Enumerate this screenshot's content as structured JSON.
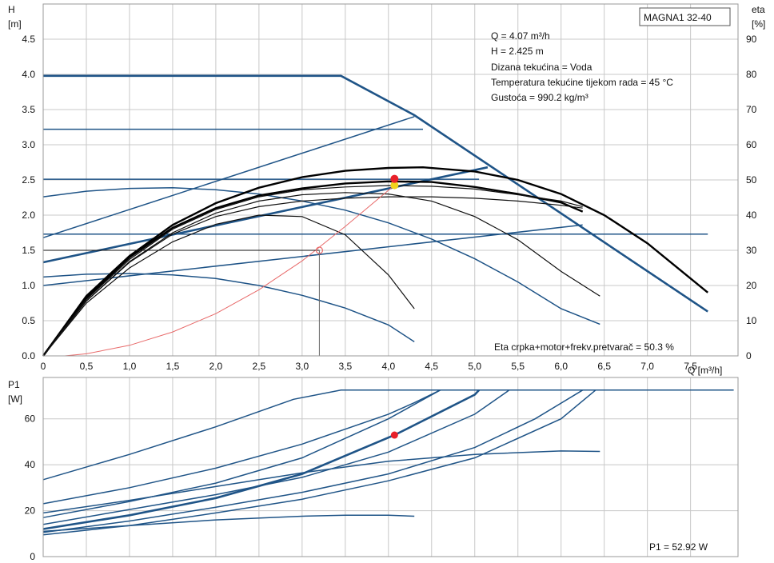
{
  "pump_label": "MAGNA1 32-40",
  "operating_point": {
    "lines": [
      "Q = 4.07 m³/h",
      "H = 2.425 m",
      "Dizana tekućina = Voda",
      "Temperatura tekućine tijekom rada = 45 °C",
      "Gustoća = 990.2 kg/m³"
    ],
    "efficiency_text": "Eta crpka+motor+frekv.pretvarač = 50.3 %",
    "power_text": "P1 = 52.92 W"
  },
  "chart_data": [
    {
      "type": "line",
      "title": "",
      "y_label_lines": [
        "H",
        "[m]"
      ],
      "y2_label_lines": [
        "eta",
        "[%]"
      ],
      "x_label": "Q [m³/h]",
      "xlim": [
        0,
        8.05
      ],
      "ylim": [
        0,
        5.0
      ],
      "y2lim": [
        0,
        100
      ],
      "x_ticks": [
        0,
        0.5,
        1.0,
        1.5,
        2.0,
        2.5,
        3.0,
        3.5,
        4.0,
        4.5,
        5.0,
        5.5,
        6.0,
        6.5,
        7.0,
        7.5
      ],
      "x_tick_labels": [
        "0",
        "0,5",
        "1,0",
        "1,5",
        "2,0",
        "2,5",
        "3,0",
        "3,5",
        "4,0",
        "4,5",
        "5,0",
        "5,5",
        "6,0",
        "6,5",
        "7,0",
        "7,5"
      ],
      "y_ticks": [
        0,
        0.5,
        1.0,
        1.5,
        2.0,
        2.5,
        3.0,
        3.5,
        4.0,
        4.5
      ],
      "y_tick_labels": [
        "0.0",
        "0.5",
        "1.0",
        "1.5",
        "2.0",
        "2.5",
        "3.0",
        "3.5",
        "4.0",
        "4.5"
      ],
      "y2_ticks": [
        0,
        10,
        20,
        30,
        40,
        50,
        60,
        70,
        80,
        90
      ],
      "y2_tick_labels": [
        "0",
        "10",
        "20",
        "30",
        "40",
        "50",
        "60",
        "70",
        "80",
        "90"
      ],
      "grid": true,
      "series": [
        {
          "role": "head-max",
          "style": "blueb",
          "x": [
            0,
            3.45,
            4.3,
            7.7
          ],
          "y": [
            3.98,
            3.98,
            3.42,
            0.63
          ]
        },
        {
          "role": "head-cp",
          "style": "blue",
          "x": [
            0,
            4.4
          ],
          "y": [
            3.22,
            3.22
          ]
        },
        {
          "role": "head-cp",
          "style": "blue",
          "x": [
            0,
            5.05
          ],
          "y": [
            2.51,
            2.51
          ]
        },
        {
          "role": "head-cp",
          "style": "blue",
          "x": [
            0,
            7.7
          ],
          "y": [
            1.73,
            1.73
          ]
        },
        {
          "role": "head-pp",
          "style": "blue",
          "x": [
            0,
            4.3
          ],
          "y": [
            1.68,
            3.4
          ]
        },
        {
          "role": "head-pp",
          "style": "blueb",
          "x": [
            0,
            5.15
          ],
          "y": [
            1.33,
            2.68
          ]
        },
        {
          "role": "head-pp",
          "style": "blue",
          "x": [
            0,
            6.25
          ],
          "y": [
            1.0,
            1.86
          ]
        },
        {
          "role": "head-speed",
          "style": "blue",
          "x": [
            0,
            0.5,
            1.0,
            1.5,
            2.0,
            2.5,
            3.0,
            3.5,
            4.0,
            4.5,
            5.0,
            5.5,
            6.0,
            6.45
          ],
          "y": [
            2.26,
            2.34,
            2.38,
            2.39,
            2.36,
            2.3,
            2.2,
            2.07,
            1.89,
            1.66,
            1.38,
            1.05,
            0.67,
            0.45
          ]
        },
        {
          "role": "head-speed",
          "style": "blue",
          "x": [
            0,
            0.5,
            1.0,
            1.5,
            2.0,
            2.5,
            3.0,
            3.5,
            4.0,
            4.3
          ],
          "y": [
            1.12,
            1.16,
            1.17,
            1.15,
            1.1,
            1.0,
            0.86,
            0.68,
            0.44,
            0.2
          ]
        },
        {
          "role": "eta",
          "style": "blkb",
          "x": [
            0,
            0.5,
            1.0,
            1.5,
            2.0,
            2.5,
            3.0,
            3.5,
            4.0,
            4.4,
            5.0,
            5.5,
            6.0,
            6.5,
            7.0,
            7.5,
            7.7
          ],
          "y": [
            0,
            0.85,
            1.42,
            1.86,
            2.17,
            2.39,
            2.54,
            2.63,
            2.67,
            2.68,
            2.62,
            2.5,
            2.3,
            2.0,
            1.6,
            1.1,
            0.9
          ]
        },
        {
          "role": "eta",
          "style": "blkb",
          "x": [
            0,
            0.5,
            1.0,
            1.5,
            2.0,
            2.5,
            3.0,
            3.5,
            4.0,
            4.5,
            5.0,
            5.5,
            6.0,
            6.25
          ],
          "y": [
            0,
            0.82,
            1.4,
            1.82,
            2.1,
            2.28,
            2.38,
            2.45,
            2.48,
            2.47,
            2.4,
            2.3,
            2.18,
            2.05
          ]
        },
        {
          "role": "eta",
          "style": "blk",
          "x": [
            0,
            0.5,
            1.0,
            1.5,
            2.0,
            2.5,
            3.0,
            3.5,
            4.0,
            4.5,
            5.0,
            5.5,
            6.0,
            6.45
          ],
          "y": [
            0,
            0.78,
            1.34,
            1.75,
            2.03,
            2.2,
            2.29,
            2.32,
            2.3,
            2.2,
            1.98,
            1.65,
            1.2,
            0.85
          ]
        },
        {
          "role": "eta",
          "style": "blk",
          "x": [
            0,
            0.5,
            1.0,
            1.5,
            2.0,
            2.5,
            3.0,
            3.5,
            4.0,
            4.5,
            5.0,
            5.5,
            6.0,
            6.25
          ],
          "y": [
            0,
            0.78,
            1.33,
            1.73,
            1.98,
            2.12,
            2.2,
            2.24,
            2.26,
            2.26,
            2.24,
            2.2,
            2.14,
            2.1
          ]
        },
        {
          "role": "eta",
          "style": "blk",
          "x": [
            0,
            0.5,
            1.0,
            1.5,
            2.0,
            2.5,
            3.0,
            3.5,
            4.0,
            4.3
          ],
          "y": [
            0,
            0.75,
            1.25,
            1.62,
            1.87,
            2.0,
            1.98,
            1.72,
            1.15,
            0.67
          ]
        },
        {
          "role": "eta",
          "style": "blk",
          "x": [
            0,
            0.5,
            1.0,
            1.5,
            2.0,
            2.5,
            3.0,
            3.5,
            4.0,
            4.5,
            5.0,
            5.5,
            6.0,
            6.25
          ],
          "y": [
            0,
            0.8,
            1.37,
            1.8,
            2.08,
            2.26,
            2.36,
            2.4,
            2.42,
            2.41,
            2.37,
            2.29,
            2.2,
            2.12
          ]
        },
        {
          "role": "system",
          "style": "red",
          "x": [
            0.25,
            0.5,
            1.0,
            1.5,
            2.0,
            2.5,
            3.0,
            3.5,
            4.07
          ],
          "y": [
            0,
            0.03,
            0.15,
            0.34,
            0.6,
            0.94,
            1.35,
            1.84,
            2.425
          ]
        },
        {
          "role": "reference",
          "style": "thin",
          "x": [
            0,
            3.2
          ],
          "y": [
            1.5,
            1.5
          ]
        },
        {
          "role": "reference",
          "style": "grey",
          "x": [
            3.2,
            3.2
          ],
          "y": [
            1.5,
            0
          ]
        }
      ],
      "markers": [
        {
          "role": "duty-point",
          "x": 4.07,
          "y": 2.425,
          "color": "#f0d21e",
          "r": 5
        },
        {
          "role": "eta-point",
          "x": 4.07,
          "y": 2.515,
          "color": "#e8202a",
          "r": 5
        },
        {
          "role": "open-circle",
          "x": 3.2,
          "y": 1.5,
          "color": "#e86a6a",
          "r": 4
        }
      ]
    },
    {
      "type": "line",
      "title": "",
      "y_label_lines": [
        "P1",
        "[W]"
      ],
      "xlim": [
        0,
        8.05
      ],
      "ylim": [
        0,
        78
      ],
      "y_ticks": [
        0,
        20,
        40,
        60
      ],
      "y_tick_labels": [
        "0",
        "20",
        "40",
        "60"
      ],
      "grid": true,
      "series": [
        {
          "role": "power-max",
          "style": "blue",
          "x": [
            0,
            1.0,
            2.0,
            2.9,
            3.45,
            8.0
          ],
          "y": [
            33.5,
            44.5,
            56.5,
            68.5,
            72.5,
            72.5
          ]
        },
        {
          "role": "power",
          "style": "blue",
          "x": [
            0,
            1.0,
            2.0,
            3.0,
            4.0,
            4.3,
            4.6
          ],
          "y": [
            23.0,
            30.0,
            38.5,
            49.0,
            62.0,
            67.0,
            72.5
          ]
        },
        {
          "role": "power",
          "style": "blue",
          "x": [
            0,
            1.0,
            2.0,
            3.0,
            4.0,
            4.6
          ],
          "y": [
            17.0,
            24.0,
            32.0,
            43.0,
            60.0,
            72.5
          ]
        },
        {
          "role": "power",
          "style": "blueb",
          "x": [
            0,
            1.0,
            2.0,
            3.0,
            4.07,
            5.0,
            5.05
          ],
          "y": [
            12.0,
            18.0,
            25.5,
            36.0,
            52.92,
            70.5,
            72.5
          ]
        },
        {
          "role": "power",
          "style": "blue",
          "x": [
            0,
            1.0,
            2.0,
            3.0,
            4.0,
            5.0,
            5.4
          ],
          "y": [
            14.0,
            20.5,
            27.0,
            34.5,
            45.5,
            62.0,
            72.5
          ]
        },
        {
          "role": "power",
          "style": "blue",
          "x": [
            0,
            1.0,
            2.0,
            3.0,
            4.0,
            5.0,
            5.7,
            6.25
          ],
          "y": [
            10.5,
            15.5,
            21.5,
            28.0,
            36.0,
            47.5,
            60.0,
            72.5
          ]
        },
        {
          "role": "power",
          "style": "blue",
          "x": [
            0,
            1.0,
            2.0,
            3.0,
            4.0,
            5.0,
            6.0,
            6.4
          ],
          "y": [
            9.5,
            13.5,
            19.0,
            25.0,
            33.0,
            43.0,
            60.0,
            72.5
          ]
        },
        {
          "role": "power",
          "style": "blue",
          "x": [
            0,
            1.0,
            2.0,
            3.0,
            4.0,
            5.0,
            6.0,
            6.45
          ],
          "y": [
            19.0,
            24.5,
            30.5,
            36.5,
            41.5,
            44.5,
            46.0,
            45.8
          ]
        },
        {
          "role": "power-min",
          "style": "blue",
          "x": [
            0,
            1.0,
            2.0,
            3.0,
            3.5,
            4.0,
            4.3
          ],
          "y": [
            11.0,
            13.5,
            16.0,
            17.6,
            18.0,
            18.0,
            17.6
          ]
        }
      ],
      "markers": [
        {
          "role": "power-point",
          "x": 4.07,
          "y": 52.92,
          "color": "#e8202a",
          "r": 4.5
        }
      ]
    }
  ]
}
